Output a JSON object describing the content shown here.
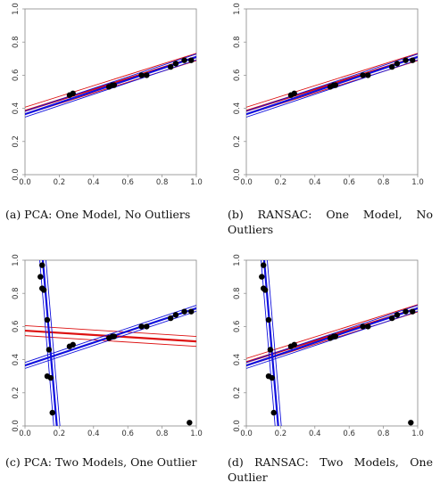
{
  "captions": [
    "(a) PCA: One Model, No Outliers",
    "(b) RANSAC: One Model, No Outliers",
    "(c) PCA: Two Models, One Outlier",
    "(d) RANSAC: Two Models, One Outlier"
  ],
  "colors": {
    "blue": "#1010dd",
    "red": "#dd1010",
    "points": "#000000"
  },
  "chart_data": [
    {
      "type": "scatter",
      "title": "",
      "xlim": [
        0,
        1
      ],
      "ylim": [
        0,
        1
      ],
      "xticks": [
        "0.0",
        "0.2",
        "0.4",
        "0.6",
        "0.8",
        "1.0"
      ],
      "yticks": [
        "0.0",
        "0.2",
        "0.4",
        "0.6",
        "0.8",
        "1.0"
      ],
      "points": [
        [
          0.26,
          0.48
        ],
        [
          0.28,
          0.49
        ],
        [
          0.49,
          0.53
        ],
        [
          0.51,
          0.54
        ],
        [
          0.52,
          0.54
        ],
        [
          0.68,
          0.6
        ],
        [
          0.71,
          0.6
        ],
        [
          0.85,
          0.65
        ],
        [
          0.88,
          0.67
        ],
        [
          0.93,
          0.69
        ],
        [
          0.97,
          0.69
        ]
      ],
      "fitted_lines": [
        {
          "color": "red",
          "intercept": 0.385,
          "slope": 0.325,
          "band": 0.022
        },
        {
          "color": "blue",
          "intercept": 0.365,
          "slope": 0.345,
          "band": 0.018
        }
      ]
    },
    {
      "type": "scatter",
      "title": "",
      "xlim": [
        0,
        1
      ],
      "ylim": [
        0,
        1
      ],
      "xticks": [
        "0.0",
        "0.2",
        "0.4",
        "0.6",
        "0.8",
        "1.0"
      ],
      "yticks": [
        "0.0",
        "0.2",
        "0.4",
        "0.6",
        "0.8",
        "1.0"
      ],
      "points": [
        [
          0.26,
          0.48
        ],
        [
          0.28,
          0.49
        ],
        [
          0.49,
          0.53
        ],
        [
          0.51,
          0.54
        ],
        [
          0.52,
          0.54
        ],
        [
          0.68,
          0.6
        ],
        [
          0.71,
          0.6
        ],
        [
          0.85,
          0.65
        ],
        [
          0.88,
          0.67
        ],
        [
          0.93,
          0.69
        ],
        [
          0.97,
          0.69
        ]
      ],
      "fitted_lines": [
        {
          "color": "red",
          "intercept": 0.385,
          "slope": 0.325,
          "band": 0.022
        },
        {
          "color": "blue",
          "intercept": 0.365,
          "slope": 0.345,
          "band": 0.018
        }
      ]
    },
    {
      "type": "scatter",
      "title": "",
      "xlim": [
        0,
        1
      ],
      "ylim": [
        0,
        1
      ],
      "xticks": [
        "0.0",
        "0.2",
        "0.4",
        "0.6",
        "0.8",
        "1.0"
      ],
      "yticks": [
        "0.0",
        "0.2",
        "0.4",
        "0.6",
        "0.8",
        "1.0"
      ],
      "points": [
        [
          0.26,
          0.48
        ],
        [
          0.28,
          0.49
        ],
        [
          0.49,
          0.53
        ],
        [
          0.51,
          0.54
        ],
        [
          0.52,
          0.54
        ],
        [
          0.68,
          0.6
        ],
        [
          0.71,
          0.6
        ],
        [
          0.85,
          0.65
        ],
        [
          0.88,
          0.67
        ],
        [
          0.93,
          0.69
        ],
        [
          0.97,
          0.69
        ],
        [
          0.1,
          0.97
        ],
        [
          0.09,
          0.9
        ],
        [
          0.1,
          0.83
        ],
        [
          0.11,
          0.82
        ],
        [
          0.13,
          0.64
        ],
        [
          0.14,
          0.46
        ],
        [
          0.13,
          0.3
        ],
        [
          0.15,
          0.29
        ],
        [
          0.16,
          0.08
        ],
        [
          0.96,
          0.02
        ]
      ],
      "fitted_lines": [
        {
          "color": "red",
          "intercept": 0.575,
          "slope": -0.065,
          "band": 0.03
        },
        {
          "color": "blue",
          "intercept": 0.365,
          "slope": 0.345,
          "band": 0.018
        },
        {
          "color": "blue",
          "vertical": true,
          "x_at_top": 0.1,
          "x_at_bottom": 0.19,
          "band": 0.018
        }
      ]
    },
    {
      "type": "scatter",
      "title": "",
      "xlim": [
        0,
        1
      ],
      "ylim": [
        0,
        1
      ],
      "xticks": [
        "0.0",
        "0.2",
        "0.4",
        "0.6",
        "0.8",
        "1.0"
      ],
      "yticks": [
        "0.0",
        "0.2",
        "0.4",
        "0.6",
        "0.8",
        "1.0"
      ],
      "points": [
        [
          0.26,
          0.48
        ],
        [
          0.28,
          0.49
        ],
        [
          0.49,
          0.53
        ],
        [
          0.51,
          0.54
        ],
        [
          0.52,
          0.54
        ],
        [
          0.68,
          0.6
        ],
        [
          0.71,
          0.6
        ],
        [
          0.85,
          0.65
        ],
        [
          0.88,
          0.67
        ],
        [
          0.93,
          0.69
        ],
        [
          0.97,
          0.69
        ],
        [
          0.1,
          0.97
        ],
        [
          0.09,
          0.9
        ],
        [
          0.1,
          0.83
        ],
        [
          0.11,
          0.82
        ],
        [
          0.13,
          0.64
        ],
        [
          0.14,
          0.46
        ],
        [
          0.13,
          0.3
        ],
        [
          0.15,
          0.29
        ],
        [
          0.16,
          0.08
        ],
        [
          0.96,
          0.02
        ]
      ],
      "fitted_lines": [
        {
          "color": "red",
          "intercept": 0.385,
          "slope": 0.325,
          "band": 0.022
        },
        {
          "color": "blue",
          "intercept": 0.365,
          "slope": 0.345,
          "band": 0.018
        },
        {
          "color": "blue",
          "vertical": true,
          "x_at_top": 0.1,
          "x_at_bottom": 0.19,
          "band": 0.018
        }
      ]
    }
  ]
}
